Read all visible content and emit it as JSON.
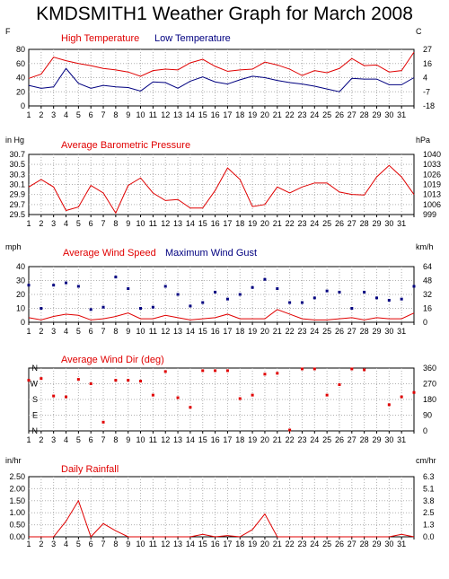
{
  "page": {
    "title": "KMDSMITH1 Weather Graph for March 2008"
  },
  "colors": {
    "red": "#e00000",
    "blue": "#000080",
    "grid": "#b0b0b0",
    "frame": "#000000"
  },
  "chart_data": [
    {
      "type": "line",
      "title": "",
      "left_unit": "F",
      "right_unit": "C",
      "series": [
        {
          "name": "High Temperature",
          "color": "#e00000",
          "values": [
            39,
            45,
            69,
            64,
            60,
            57,
            53,
            51,
            48,
            42,
            50,
            52,
            51,
            61,
            66,
            56,
            49,
            51,
            52,
            62,
            58,
            52,
            43,
            50,
            47,
            53,
            67,
            57,
            58,
            48,
            50,
            76
          ]
        },
        {
          "name": "Low Temperature",
          "color": "#000080",
          "values": [
            29,
            25,
            27,
            53,
            32,
            25,
            29,
            27,
            26,
            21,
            34,
            33,
            25,
            35,
            41,
            34,
            31,
            37,
            42,
            40,
            36,
            33,
            31,
            28,
            24,
            20,
            39,
            38,
            38,
            30,
            30,
            40
          ]
        }
      ],
      "left_ticks": [
        "80",
        "60",
        "40",
        "20",
        "0"
      ],
      "right_ticks": [
        "27",
        "16",
        "4",
        "-7",
        "-18"
      ],
      "x": [
        1,
        2,
        3,
        4,
        5,
        6,
        7,
        8,
        9,
        10,
        11,
        12,
        13,
        14,
        15,
        16,
        17,
        18,
        19,
        20,
        21,
        22,
        23,
        24,
        25,
        26,
        27,
        28,
        29,
        30,
        31,
        32
      ],
      "x_labels": [
        "1",
        "2",
        "3",
        "4",
        "5",
        "6",
        "7",
        "8",
        "9",
        "10",
        "11",
        "12",
        "13",
        "14",
        "15",
        "16",
        "17",
        "18",
        "19",
        "20",
        "21",
        "22",
        "23",
        "24",
        "25",
        "26",
        "27",
        "28",
        "29",
        "30",
        "31"
      ],
      "ylim": [
        0,
        80
      ]
    },
    {
      "type": "line",
      "title": "Average Barometric Pressure",
      "left_unit": "in Hg",
      "right_unit": "hPa",
      "series": [
        {
          "name": "Average Barometric Pressure",
          "color": "#e00000",
          "values": [
            30.05,
            30.2,
            30.05,
            29.58,
            29.65,
            30.08,
            29.93,
            29.53,
            30.08,
            30.23,
            29.93,
            29.78,
            29.8,
            29.63,
            29.63,
            29.98,
            30.43,
            30.2,
            29.66,
            29.7,
            30.05,
            29.93,
            30.05,
            30.13,
            30.13,
            29.95,
            29.9,
            29.89,
            30.25,
            30.48,
            30.25,
            29.9
          ]
        }
      ],
      "left_ticks": [
        "30.7",
        "30.5",
        "30.3",
        "30.1",
        "29.9",
        "29.7",
        "29.5"
      ],
      "right_ticks": [
        "1040",
        "1033",
        "1026",
        "1019",
        "1013",
        "1006",
        "999"
      ],
      "x": [
        1,
        2,
        3,
        4,
        5,
        6,
        7,
        8,
        9,
        10,
        11,
        12,
        13,
        14,
        15,
        16,
        17,
        18,
        19,
        20,
        21,
        22,
        23,
        24,
        25,
        26,
        27,
        28,
        29,
        30,
        31,
        32
      ],
      "x_labels": [
        "1",
        "2",
        "3",
        "4",
        "5",
        "6",
        "7",
        "8",
        "9",
        "10",
        "11",
        "12",
        "13",
        "14",
        "15",
        "16",
        "17",
        "18",
        "19",
        "20",
        "21",
        "22",
        "23",
        "24",
        "25",
        "26",
        "27",
        "28",
        "29",
        "30",
        "31"
      ],
      "ylim": [
        29.5,
        30.7
      ]
    },
    {
      "type": "line",
      "title": "",
      "left_unit": "mph",
      "right_unit": "km/h",
      "series": [
        {
          "name": "Average Wind Speed",
          "color": "#e00000",
          "values": [
            4,
            2,
            5,
            7,
            6,
            2,
            3,
            5,
            8,
            3,
            3,
            6,
            4,
            2,
            3,
            4,
            7,
            3,
            3,
            3,
            11,
            7,
            3,
            2,
            2,
            3,
            4,
            2,
            4,
            3,
            3,
            8
          ]
        },
        {
          "name": "Maximum Wind Gust",
          "color": "#000080",
          "values": [
            32,
            12,
            32,
            34,
            31,
            11,
            13,
            39,
            29,
            12,
            13,
            31,
            24,
            14,
            17,
            26,
            20,
            24,
            30,
            37,
            29,
            17,
            17,
            21,
            27,
            26,
            12,
            26,
            21,
            19,
            20,
            31
          ]
        }
      ],
      "left_ticks": [
        "40",
        "30",
        "20",
        "10",
        "0"
      ],
      "right_ticks": [
        "64",
        "48",
        "32",
        "16",
        "0"
      ],
      "x": [
        1,
        2,
        3,
        4,
        5,
        6,
        7,
        8,
        9,
        10,
        11,
        12,
        13,
        14,
        15,
        16,
        17,
        18,
        19,
        20,
        21,
        22,
        23,
        24,
        25,
        26,
        27,
        28,
        29,
        30,
        31,
        32
      ],
      "x_labels": [
        "1",
        "2",
        "3",
        "4",
        "5",
        "6",
        "7",
        "8",
        "9",
        "10",
        "11",
        "12",
        "13",
        "14",
        "15",
        "16",
        "17",
        "18",
        "19",
        "20",
        "21",
        "22",
        "23",
        "24",
        "25",
        "26",
        "27",
        "28",
        "29",
        "30",
        "31"
      ],
      "ylim": [
        0,
        48
      ]
    },
    {
      "type": "scatter",
      "title": "Average Wind Dir (deg)",
      "left_unit": "",
      "right_unit": "",
      "series": [
        {
          "name": "Average Wind Dir (deg)",
          "color": "#e00000",
          "values": [
            290,
            300,
            200,
            195,
            295,
            270,
            50,
            290,
            290,
            285,
            205,
            340,
            190,
            135,
            345,
            345,
            345,
            185,
            205,
            325,
            330,
            5,
            355,
            355,
            205,
            265,
            355,
            350,
            null,
            150,
            195,
            220
          ]
        }
      ],
      "left_ticks": [
        "N",
        "W",
        "S",
        "E",
        "N"
      ],
      "right_ticks": [
        "360",
        "270",
        "180",
        "90",
        "0"
      ],
      "x": [
        1,
        2,
        3,
        4,
        5,
        6,
        7,
        8,
        9,
        10,
        11,
        12,
        13,
        14,
        15,
        16,
        17,
        18,
        19,
        20,
        21,
        22,
        23,
        24,
        25,
        26,
        27,
        28,
        29,
        30,
        31,
        32
      ],
      "x_labels": [
        "1",
        "2",
        "3",
        "4",
        "5",
        "6",
        "7",
        "8",
        "9",
        "10",
        "11",
        "12",
        "13",
        "14",
        "15",
        "16",
        "17",
        "18",
        "19",
        "20",
        "21",
        "22",
        "23",
        "24",
        "25",
        "26",
        "27",
        "28",
        "29",
        "30",
        "31"
      ],
      "ylim": [
        0,
        360
      ]
    },
    {
      "type": "line",
      "title": "Daily Rainfall",
      "left_unit": "in/hr",
      "right_unit": "cm/hr",
      "series": [
        {
          "name": "Daily Rainfall",
          "color": "#e00000",
          "values": [
            0,
            0,
            0,
            0.65,
            1.5,
            0,
            0.55,
            0.25,
            0,
            0,
            0,
            0,
            0,
            0,
            0.1,
            0,
            0.05,
            0,
            0.3,
            0.95,
            0,
            0,
            0,
            0,
            0,
            0,
            0,
            0,
            0,
            0,
            0.1,
            0
          ]
        }
      ],
      "left_ticks": [
        "2.50",
        "2.00",
        "1.50",
        "1.00",
        "0.50",
        "0.00"
      ],
      "right_ticks": [
        "6.3",
        "5.1",
        "3.8",
        "2.5",
        "1.3",
        "0.0"
      ],
      "x": [
        1,
        2,
        3,
        4,
        5,
        6,
        7,
        8,
        9,
        10,
        11,
        12,
        13,
        14,
        15,
        16,
        17,
        18,
        19,
        20,
        21,
        22,
        23,
        24,
        25,
        26,
        27,
        28,
        29,
        30,
        31,
        32
      ],
      "x_labels": [
        "1",
        "2",
        "3",
        "4",
        "5",
        "6",
        "7",
        "8",
        "9",
        "10",
        "11",
        "12",
        "13",
        "14",
        "15",
        "16",
        "17",
        "18",
        "19",
        "20",
        "21",
        "22",
        "23",
        "24",
        "25",
        "26",
        "27",
        "28",
        "29",
        "30",
        "31"
      ],
      "ylim": [
        0,
        2.5
      ]
    }
  ]
}
